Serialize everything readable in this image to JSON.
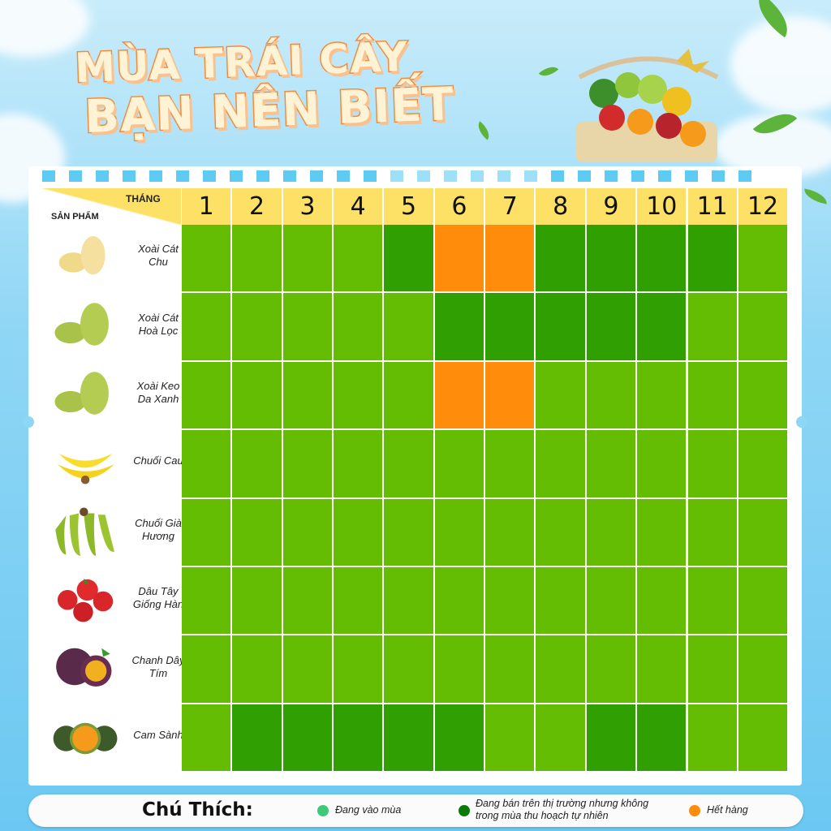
{
  "title": {
    "line1": "MÙA TRÁI CÂY",
    "line2": "BẠN NÊN BIẾT"
  },
  "table": {
    "header_month": "THÁNG",
    "header_product": "SẢN PHẨM",
    "months": [
      "1",
      "2",
      "3",
      "4",
      "5",
      "6",
      "7",
      "8",
      "9",
      "10",
      "11",
      "12"
    ],
    "rows": [
      {
        "name": "Xoài Cát Chu",
        "fruit": "yellow-mango",
        "status": [
          "in",
          "in",
          "in",
          "in",
          "sale",
          "out",
          "out",
          "sale",
          "sale",
          "sale",
          "sale",
          "in"
        ]
      },
      {
        "name": "Xoài Cát Hoà Lọc",
        "fruit": "green-mango",
        "status": [
          "in",
          "in",
          "in",
          "in",
          "in",
          "sale",
          "sale",
          "sale",
          "sale",
          "sale",
          "in",
          "in"
        ]
      },
      {
        "name": "Xoài Keo Da Xanh",
        "fruit": "green-mango",
        "status": [
          "in",
          "in",
          "in",
          "in",
          "in",
          "out",
          "out",
          "in",
          "in",
          "in",
          "in",
          "in"
        ]
      },
      {
        "name": "Chuối Cau",
        "fruit": "banana",
        "status": [
          "in",
          "in",
          "in",
          "in",
          "in",
          "in",
          "in",
          "in",
          "in",
          "in",
          "in",
          "in"
        ]
      },
      {
        "name": "Chuối Già Hương",
        "fruit": "green-banana",
        "status": [
          "in",
          "in",
          "in",
          "in",
          "in",
          "in",
          "in",
          "in",
          "in",
          "in",
          "in",
          "in"
        ]
      },
      {
        "name": "Dâu Tây Giống Hàn",
        "fruit": "strawberry",
        "status": [
          "in",
          "in",
          "in",
          "in",
          "in",
          "in",
          "in",
          "in",
          "in",
          "in",
          "in",
          "in"
        ]
      },
      {
        "name": "Chanh Dây Tím",
        "fruit": "passion-fruit",
        "status": [
          "in",
          "in",
          "in",
          "in",
          "in",
          "in",
          "in",
          "in",
          "in",
          "in",
          "in",
          "in"
        ]
      },
      {
        "name": "Cam Sành",
        "fruit": "orange",
        "status": [
          "in",
          "sale",
          "sale",
          "sale",
          "sale",
          "sale",
          "in",
          "in",
          "sale",
          "sale",
          "in",
          "in"
        ]
      }
    ]
  },
  "legend": {
    "title": "Chú Thích:",
    "items": [
      {
        "key": "in",
        "label": "Đang vào mùa",
        "dot": "#3ec97a"
      },
      {
        "key": "sale",
        "label": "Đang bán trên thị trường nhưng không trong mùa thu hoạch tự nhiên",
        "dot": "#0a7a0a"
      },
      {
        "key": "out",
        "label": "Hết hàng",
        "dot": "#ff8c0a"
      }
    ]
  },
  "colors": {
    "in": "#64bd02",
    "sale": "#2f9f02",
    "out": "#ff8c0a",
    "header": "#fde066"
  }
}
